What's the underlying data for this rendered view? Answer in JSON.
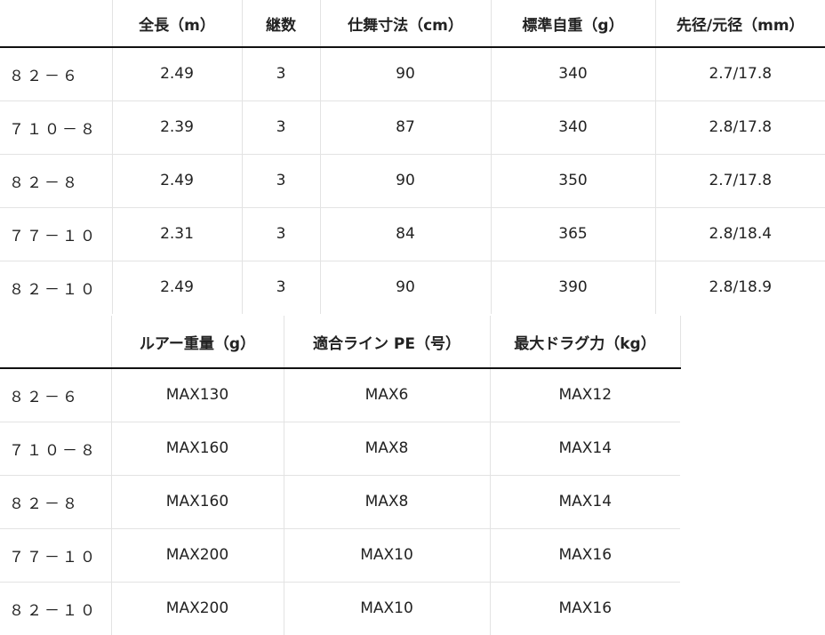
{
  "table1": {
    "headers": [
      "",
      "全長（m）",
      "継数",
      "仕舞寸法（cm）",
      "標準自重（g）",
      "先径/元径（mm）"
    ],
    "rows": [
      [
        "８２－６",
        "2.49",
        "3",
        "90",
        "340",
        "2.7/17.8"
      ],
      [
        "７１０－８",
        "2.39",
        "3",
        "87",
        "340",
        "2.8/17.8"
      ],
      [
        "８２－８",
        "2.49",
        "3",
        "90",
        "350",
        "2.7/17.8"
      ],
      [
        "７７－１０",
        "2.31",
        "3",
        "84",
        "365",
        "2.8/18.4"
      ],
      [
        "８２－１０",
        "2.49",
        "3",
        "90",
        "390",
        "2.8/18.9"
      ]
    ]
  },
  "table2": {
    "headers": [
      "",
      "ルアー重量（g）",
      "適合ライン PE（号）",
      "最大ドラグ力（kg）"
    ],
    "rows": [
      [
        "８２－６",
        "MAX130",
        "MAX6",
        "MAX12"
      ],
      [
        "７１０－８",
        "MAX160",
        "MAX8",
        "MAX14"
      ],
      [
        "８２－８",
        "MAX160",
        "MAX8",
        "MAX14"
      ],
      [
        "７７－１０",
        "MAX200",
        "MAX10",
        "MAX16"
      ],
      [
        "８２－１０",
        "MAX200",
        "MAX10",
        "MAX16"
      ]
    ]
  }
}
